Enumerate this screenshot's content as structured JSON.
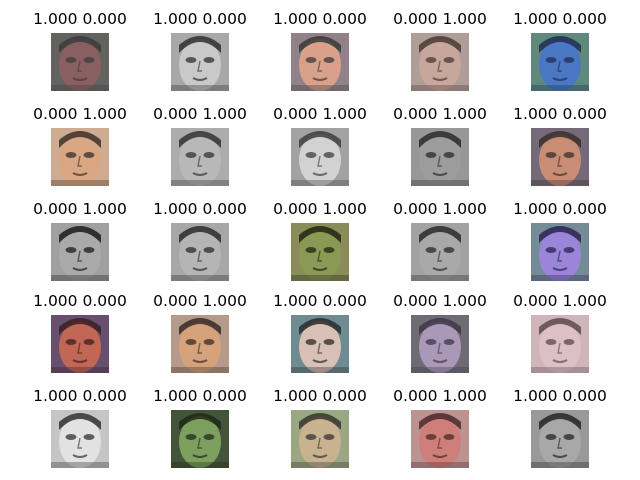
{
  "figure": {
    "columns": 5,
    "rows": 5,
    "panels": [
      {
        "caption": "1.000 0.000",
        "palette": [
          "#5a4a55",
          "#8a5f62",
          "#3c3c3c",
          "#6f7f6a"
        ]
      },
      {
        "caption": "1.000 0.000",
        "palette": [
          "#7a7a7a",
          "#c9c9c9",
          "#2f2f2f",
          "#e0e0e0"
        ]
      },
      {
        "caption": "1.000 0.000",
        "palette": [
          "#a36a58",
          "#d9a08a",
          "#3a3a3a",
          "#7da0c8"
        ]
      },
      {
        "caption": "0.000 1.000",
        "palette": [
          "#8e7a74",
          "#c7a69b",
          "#4a3a34",
          "#d8c8c0"
        ]
      },
      {
        "caption": "1.000 0.000",
        "palette": [
          "#2e4d8a",
          "#4b77c4",
          "#1e2e55",
          "#9bd36a"
        ]
      },
      {
        "caption": "0.000 1.000",
        "palette": [
          "#b47a58",
          "#d9a784",
          "#3b3026",
          "#f0e6d8"
        ]
      },
      {
        "caption": "0.000 1.000",
        "palette": [
          "#7a7a7a",
          "#b8b8b8",
          "#333333",
          "#e8e8e8"
        ]
      },
      {
        "caption": "0.000 1.000",
        "palette": [
          "#8c8c8c",
          "#d2d2d2",
          "#3e3e3e",
          "#bdbdbd"
        ]
      },
      {
        "caption": "0.000 1.000",
        "palette": [
          "#6a6a6a",
          "#9c9c9c",
          "#2a2a2a",
          "#cfcfcf"
        ]
      },
      {
        "caption": "1.000 0.000",
        "palette": [
          "#8a5a4e",
          "#c98d76",
          "#3a2f2a",
          "#5a7fb0"
        ]
      },
      {
        "caption": "0.000 1.000",
        "palette": [
          "#6e6e6e",
          "#aaaaaa",
          "#1c1c1c",
          "#dddddd"
        ]
      },
      {
        "caption": "1.000 0.000",
        "palette": [
          "#7b7b7b",
          "#b5b5b5",
          "#2c2c2c",
          "#dcdcdc"
        ]
      },
      {
        "caption": "0.000 1.000",
        "palette": [
          "#5d6b3a",
          "#8a9a55",
          "#1f2413",
          "#c0b680"
        ]
      },
      {
        "caption": "0.000 1.000",
        "palette": [
          "#767676",
          "#a9a9a9",
          "#2a2a2a",
          "#d7d7d7"
        ]
      },
      {
        "caption": "1.000 0.000",
        "palette": [
          "#6f52b0",
          "#9a85d9",
          "#2d2350",
          "#7ad27a"
        ]
      },
      {
        "caption": "1.000 0.000",
        "palette": [
          "#8a3e3a",
          "#c26656",
          "#3a2022",
          "#3f63b0"
        ]
      },
      {
        "caption": "0.000 1.000",
        "palette": [
          "#9a6a4e",
          "#d6a27c",
          "#3a2a24",
          "#d4d4d4"
        ]
      },
      {
        "caption": "1.000 0.000",
        "palette": [
          "#9a7a72",
          "#d9c0b6",
          "#2a2a2a",
          "#3aa0b8"
        ]
      },
      {
        "caption": "0.000 1.000",
        "palette": [
          "#7a6c88",
          "#a998b8",
          "#3e3848",
          "#606a5a"
        ]
      },
      {
        "caption": "0.000 1.000",
        "palette": [
          "#b48a92",
          "#dcc0c6",
          "#5a4a4e",
          "#f0e8ee"
        ]
      },
      {
        "caption": "1.000 0.000",
        "palette": [
          "#9c9c9c",
          "#e2e2e2",
          "#303030",
          "#f5f5f5"
        ]
      },
      {
        "caption": "1.000 0.000",
        "palette": [
          "#4d6a3c",
          "#7da060",
          "#1f2a18",
          "#3a3a3a"
        ]
      },
      {
        "caption": "1.000 0.000",
        "palette": [
          "#8a8a6a",
          "#c8b290",
          "#353530",
          "#b0c8a0"
        ]
      },
      {
        "caption": "0.000 1.000",
        "palette": [
          "#9a4c4c",
          "#cf7f7a",
          "#4a2a2a",
          "#e6e6e6"
        ]
      },
      {
        "caption": "1.000 0.000",
        "palette": [
          "#6e6e6e",
          "#a8a8a8",
          "#252525",
          "#cfcfcf"
        ]
      }
    ]
  }
}
